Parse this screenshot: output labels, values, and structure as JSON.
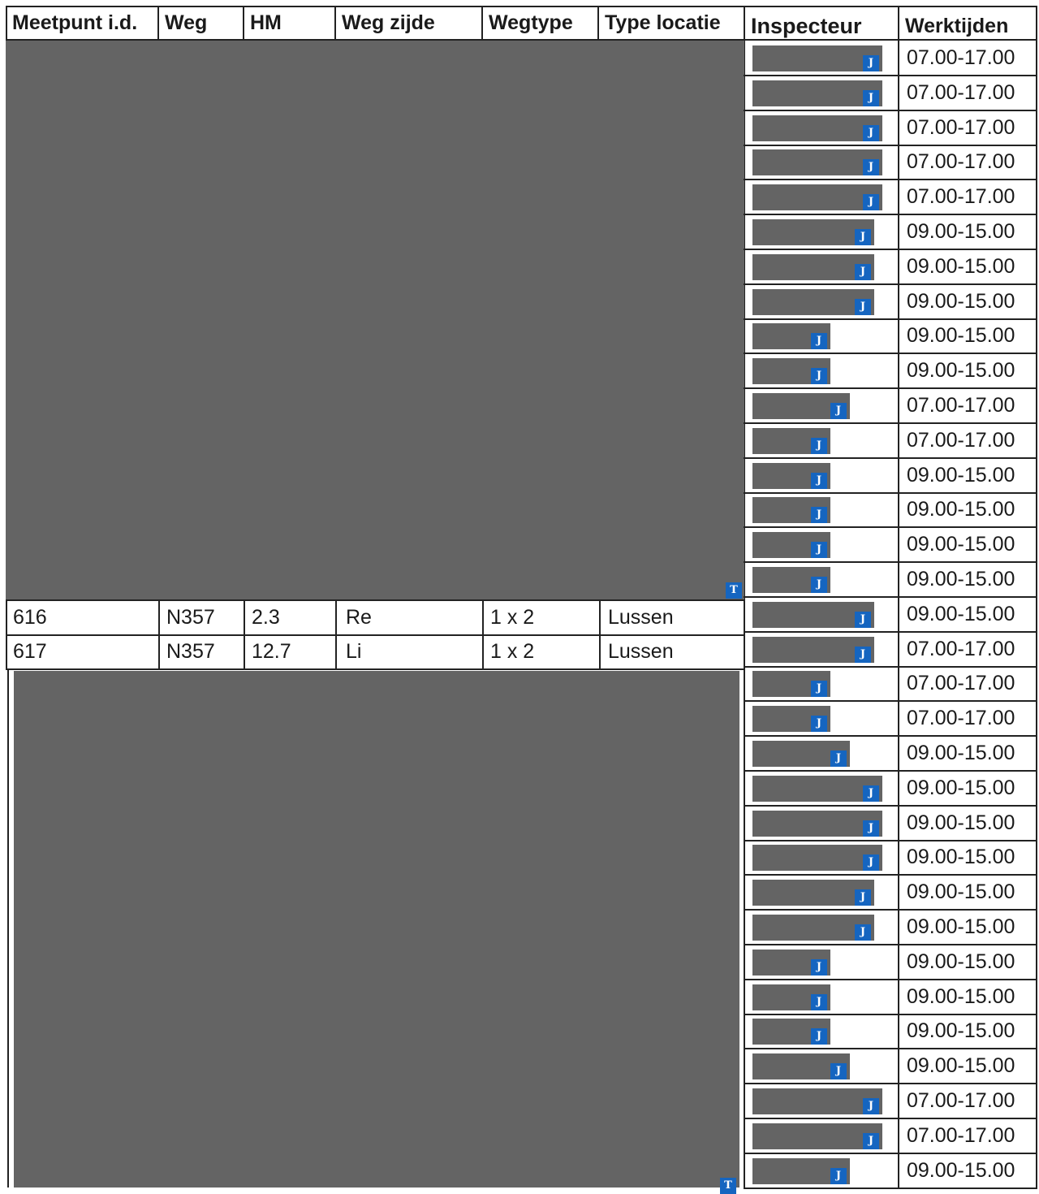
{
  "table": {
    "headers": [
      "Meetpunt i.d.",
      "Weg",
      "HM",
      "Weg zijde",
      "Wegtype",
      "Type locatie",
      "Inspecteur",
      "Werktijden"
    ],
    "visible_rows": [
      {
        "meetpunt": "616",
        "weg": "N357",
        "hm": "2.3",
        "weg_zijde": "Re",
        "wegtype": "1 x 2",
        "type_locatie": "Lussen"
      },
      {
        "meetpunt": "617",
        "weg": "N357",
        "hm": "12.7",
        "weg_zijde": "Li",
        "wegtype": "1 x 2",
        "type_locatie": "Lussen"
      }
    ],
    "werktijden": [
      "07.00-17.00",
      "07.00-17.00",
      "07.00-17.00",
      "07.00-17.00",
      "07.00-17.00",
      "09.00-15.00",
      "09.00-15.00",
      "09.00-15.00",
      "09.00-15.00",
      "09.00-15.00",
      "07.00-17.00",
      "07.00-17.00",
      "09.00-15.00",
      "09.00-15.00",
      "09.00-15.00",
      "09.00-15.00",
      "09.00-15.00",
      "07.00-17.00",
      "07.00-17.00",
      "07.00-17.00",
      "09.00-15.00",
      "09.00-15.00",
      "09.00-15.00",
      "09.00-15.00",
      "09.00-15.00",
      "09.00-15.00",
      "09.00-15.00",
      "09.00-15.00",
      "09.00-15.00",
      "09.00-15.00",
      "07.00-17.00",
      "07.00-17.00",
      "09.00-15.00"
    ],
    "inspecteur_badge": "J",
    "redaction_badge": "T"
  }
}
